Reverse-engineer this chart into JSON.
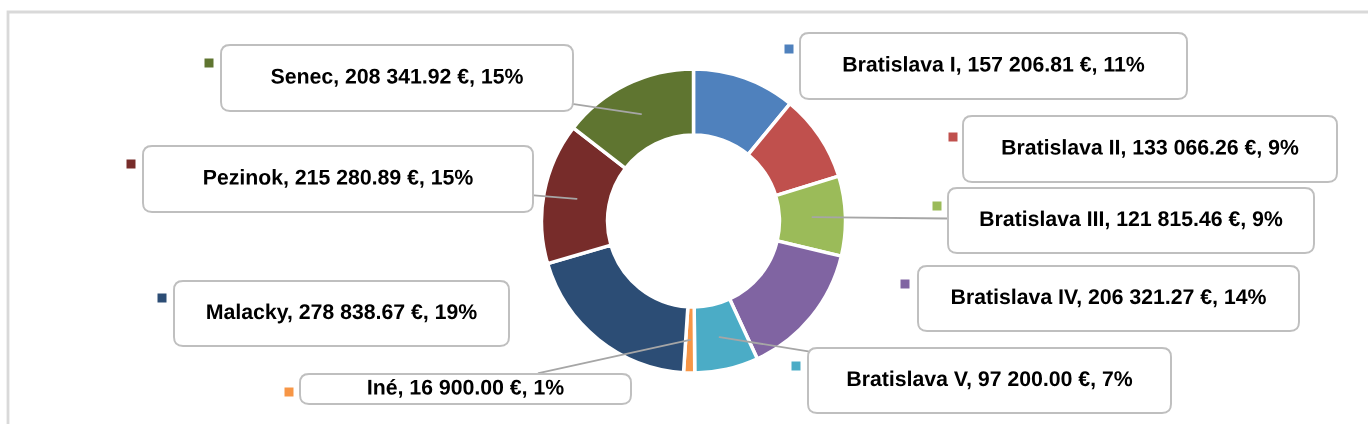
{
  "chart_data": {
    "type": "donut",
    "categories": [
      "Bratislava I",
      "Bratislava II",
      "Bratislava III",
      "Bratislava IV",
      "Bratislava V",
      "Iné",
      "Malacky",
      "Pezinok",
      "Senec"
    ],
    "values": [
      157206.81,
      133066.26,
      121815.46,
      206321.27,
      97200.0,
      16900.0,
      278838.67,
      215280.89,
      208341.92
    ],
    "colors": [
      "#4f81bd",
      "#c0504d",
      "#9bbb59",
      "#8064a2",
      "#4bacc6",
      "#f79646",
      "#2c4d75",
      "#772c2a",
      "#5f7530"
    ],
    "value_labels": [
      "157 206.81 €, 11%",
      "133 066.26 €, 9%",
      "121 815.46 €, 9%",
      "206 321.27 €, 14%",
      "97 200.00 €, 7%",
      "16 900.00 €, 1%",
      "278 838.67 €, 19%",
      "215 280.89 €, 15%",
      "208 341.92 €, 15%"
    ],
    "legend": "right"
  }
}
